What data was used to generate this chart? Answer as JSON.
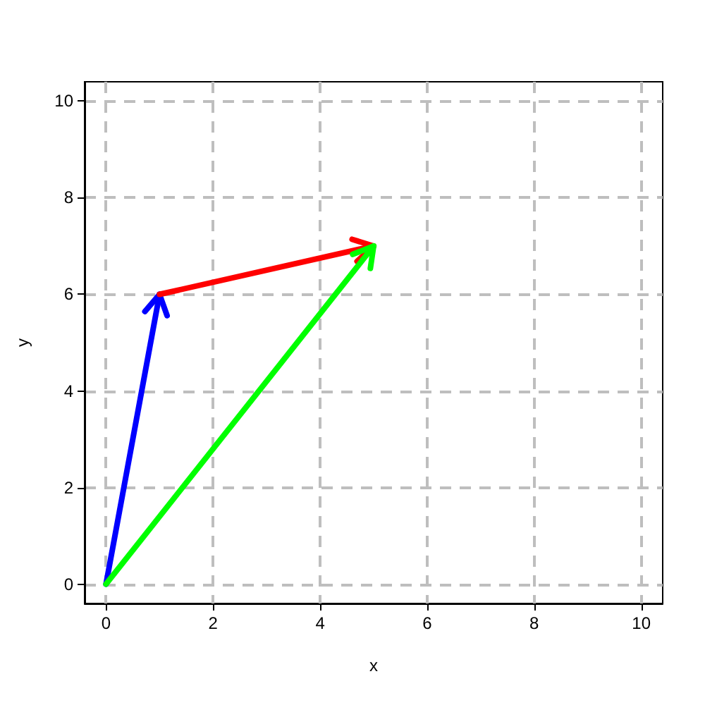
{
  "chart_data": {
    "type": "line",
    "xlabel": "x",
    "ylabel": "y",
    "xlim": [
      -0.4,
      10.4
    ],
    "ylim": [
      -0.4,
      10.4
    ],
    "xticks": [
      0,
      2,
      4,
      6,
      8,
      10
    ],
    "yticks": [
      0,
      2,
      4,
      6,
      8,
      10
    ],
    "grid": true,
    "series": [
      {
        "color": "#0000ff",
        "x": [
          0,
          1
        ],
        "values": [
          0,
          6
        ]
      },
      {
        "color": "#ff0000",
        "x": [
          1,
          5
        ],
        "values": [
          6,
          7
        ]
      },
      {
        "color": "#00ff00",
        "x": [
          0,
          5
        ],
        "values": [
          0,
          7
        ]
      }
    ]
  }
}
